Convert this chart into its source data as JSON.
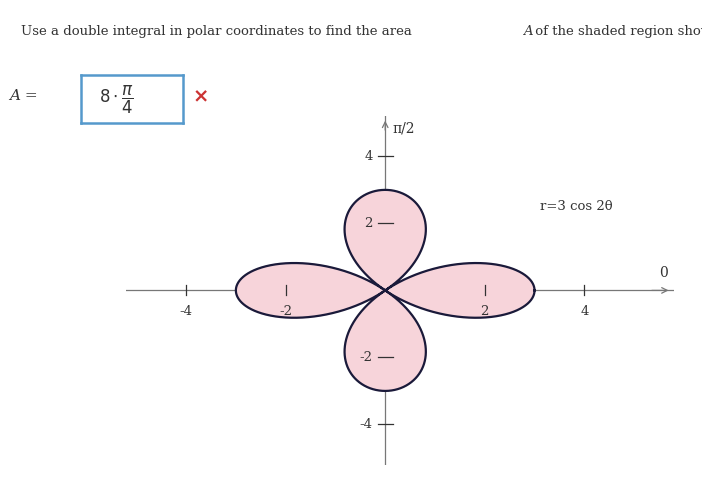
{
  "curve_amplitude": 3,
  "curve_n": 2,
  "fill_color": "#f7d4da",
  "line_color": "#1a1a3a",
  "line_width": 1.6,
  "axis_color": "#777777",
  "tick_color": "#333333",
  "xlim": [
    -5.2,
    5.8
  ],
  "ylim": [
    -5.2,
    5.2
  ],
  "xticks": [
    -4,
    -2,
    2,
    4
  ],
  "yticks": [
    -4,
    -2,
    2,
    4
  ],
  "x_label_0": "0",
  "y_label_pi2": "π/2",
  "curve_label": "r=3 cos 2θ",
  "background_color": "#ffffff",
  "box_color": "#5599cc",
  "cross_color": "#cc3333",
  "fig_width": 7.02,
  "fig_height": 4.84,
  "dpi": 100
}
